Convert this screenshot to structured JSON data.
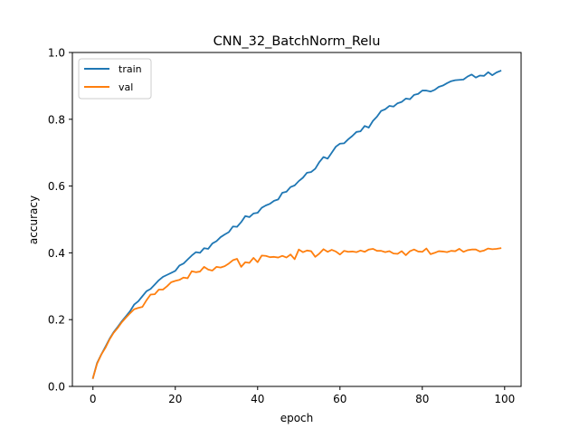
{
  "chart_data": {
    "type": "line",
    "title": "CNN_32_BatchNorm_Relu",
    "xlabel": "epoch",
    "ylabel": "accuracy",
    "xlim": [
      -5,
      104
    ],
    "ylim": [
      0.0,
      1.0
    ],
    "xticks": [
      0,
      20,
      40,
      60,
      80,
      100
    ],
    "yticks": [
      0.0,
      0.2,
      0.4,
      0.6,
      0.8,
      1.0
    ],
    "xtick_labels": [
      "0",
      "20",
      "40",
      "60",
      "80",
      "100"
    ],
    "ytick_labels": [
      "0.0",
      "0.2",
      "0.4",
      "0.6",
      "0.8",
      "1.0"
    ],
    "grid": false,
    "legend_position": "upper-left",
    "colors": {
      "train": "#1f77b4",
      "val": "#ff7f0e",
      "axes": "#000000",
      "background": "#ffffff"
    },
    "x": [
      0,
      1,
      2,
      3,
      4,
      5,
      6,
      7,
      8,
      9,
      10,
      11,
      12,
      13,
      14,
      15,
      16,
      17,
      18,
      19,
      20,
      21,
      22,
      23,
      24,
      25,
      26,
      27,
      28,
      29,
      30,
      31,
      32,
      33,
      34,
      35,
      36,
      37,
      38,
      39,
      40,
      41,
      42,
      43,
      44,
      45,
      46,
      47,
      48,
      49,
      50,
      51,
      52,
      53,
      54,
      55,
      56,
      57,
      58,
      59,
      60,
      61,
      62,
      63,
      64,
      65,
      66,
      67,
      68,
      69,
      70,
      71,
      72,
      73,
      74,
      75,
      76,
      77,
      78,
      79,
      80,
      81,
      82,
      83,
      84,
      85,
      86,
      87,
      88,
      89,
      90,
      91,
      92,
      93,
      94,
      95,
      96,
      97,
      98,
      99
    ],
    "series": [
      {
        "name": "train",
        "values": [
          0.025,
          0.07,
          0.095,
          0.118,
          0.142,
          0.162,
          0.178,
          0.195,
          0.21,
          0.225,
          0.245,
          0.255,
          0.27,
          0.285,
          0.292,
          0.305,
          0.318,
          0.328,
          0.334,
          0.34,
          0.346,
          0.362,
          0.368,
          0.38,
          0.392,
          0.402,
          0.4,
          0.414,
          0.412,
          0.428,
          0.435,
          0.447,
          0.455,
          0.462,
          0.479,
          0.478,
          0.492,
          0.51,
          0.507,
          0.518,
          0.52,
          0.535,
          0.542,
          0.547,
          0.556,
          0.56,
          0.58,
          0.583,
          0.597,
          0.602,
          0.615,
          0.625,
          0.64,
          0.642,
          0.652,
          0.672,
          0.687,
          0.682,
          0.7,
          0.718,
          0.727,
          0.728,
          0.74,
          0.75,
          0.762,
          0.764,
          0.78,
          0.775,
          0.795,
          0.808,
          0.825,
          0.83,
          0.84,
          0.838,
          0.848,
          0.852,
          0.862,
          0.86,
          0.873,
          0.876,
          0.886,
          0.886,
          0.883,
          0.888,
          0.897,
          0.901,
          0.908,
          0.914,
          0.917,
          0.918,
          0.919,
          0.928,
          0.934,
          0.925,
          0.931,
          0.93,
          0.941,
          0.932,
          0.94,
          0.945
        ]
      },
      {
        "name": "val",
        "values": [
          0.025,
          0.068,
          0.095,
          0.115,
          0.14,
          0.16,
          0.175,
          0.192,
          0.206,
          0.219,
          0.231,
          0.235,
          0.238,
          0.258,
          0.275,
          0.276,
          0.29,
          0.29,
          0.3,
          0.312,
          0.316,
          0.319,
          0.326,
          0.324,
          0.345,
          0.342,
          0.344,
          0.358,
          0.35,
          0.347,
          0.358,
          0.356,
          0.36,
          0.368,
          0.378,
          0.382,
          0.358,
          0.372,
          0.37,
          0.385,
          0.372,
          0.392,
          0.391,
          0.387,
          0.388,
          0.386,
          0.391,
          0.386,
          0.395,
          0.381,
          0.41,
          0.402,
          0.407,
          0.405,
          0.388,
          0.398,
          0.411,
          0.403,
          0.409,
          0.404,
          0.395,
          0.406,
          0.403,
          0.404,
          0.402,
          0.407,
          0.403,
          0.41,
          0.412,
          0.406,
          0.406,
          0.402,
          0.405,
          0.398,
          0.397,
          0.405,
          0.393,
          0.405,
          0.41,
          0.404,
          0.403,
          0.413,
          0.396,
          0.4,
          0.405,
          0.404,
          0.402,
          0.406,
          0.405,
          0.412,
          0.403,
          0.408,
          0.41,
          0.41,
          0.404,
          0.407,
          0.413,
          0.411,
          0.412,
          0.414
        ]
      }
    ]
  }
}
